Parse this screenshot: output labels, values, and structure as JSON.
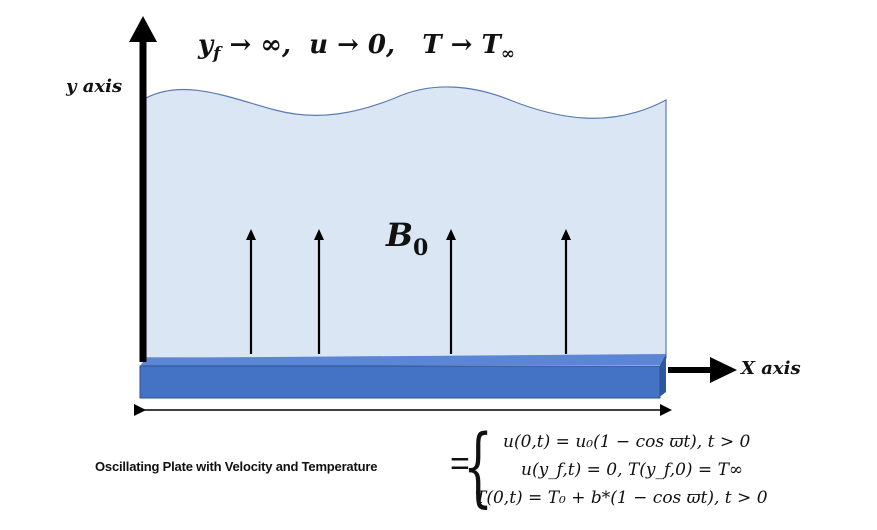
{
  "top_condition": {
    "y": "y",
    "y_sub": "f",
    "rest": " → ∞,  u → 0,   T → T",
    "t_sub": "∞"
  },
  "axes": {
    "y_label": "y axis",
    "x_label": "X axis"
  },
  "field": {
    "label": "B",
    "label_sub": "0",
    "arrow_count": 4
  },
  "caption": "Oscillating Plate with Velocity and Temperature",
  "equals": "=",
  "equations": [
    "u(0,t) = u₀(1 − cos ϖt), t > 0",
    "u(y_f,t) = 0, T(y_f,0) = T∞",
    "T(0,t) = T₀ + b*(1 − cos ϖt), t > 0"
  ],
  "colors": {
    "fluid_fill": "#dbe6f4",
    "fluid_stroke": "#5b7bb3",
    "plate_front": "#4472c4",
    "plate_top": "#5b86d6",
    "axis": "#000000"
  }
}
